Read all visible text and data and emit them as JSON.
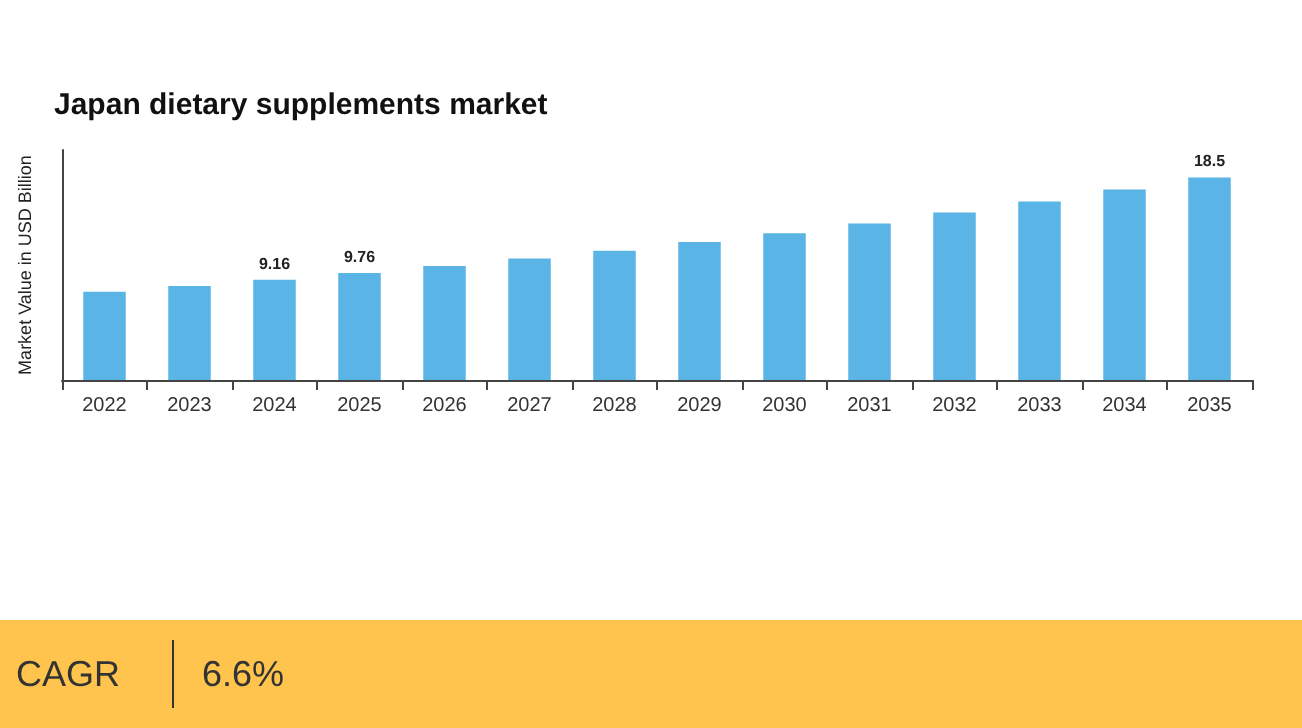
{
  "chart_data": {
    "type": "bar",
    "title": "Japan dietary supplements market",
    "ylabel": "Market Value in USD Billion",
    "categories": [
      "2022",
      "2023",
      "2024",
      "2025",
      "2026",
      "2027",
      "2028",
      "2029",
      "2030",
      "2031",
      "2032",
      "2033",
      "2034",
      "2035"
    ],
    "values": [
      8.06,
      8.59,
      9.16,
      9.76,
      10.4,
      11.09,
      11.8,
      12.6,
      13.4,
      14.3,
      15.3,
      16.3,
      17.4,
      18.5
    ],
    "value_labels": [
      null,
      null,
      "9.16",
      "9.76",
      null,
      null,
      null,
      null,
      null,
      null,
      null,
      null,
      null,
      "18.5"
    ],
    "color": "#5ab4e6",
    "tick_labels": "x",
    "annotations": [
      "CAGR",
      "6.6%"
    ]
  }
}
